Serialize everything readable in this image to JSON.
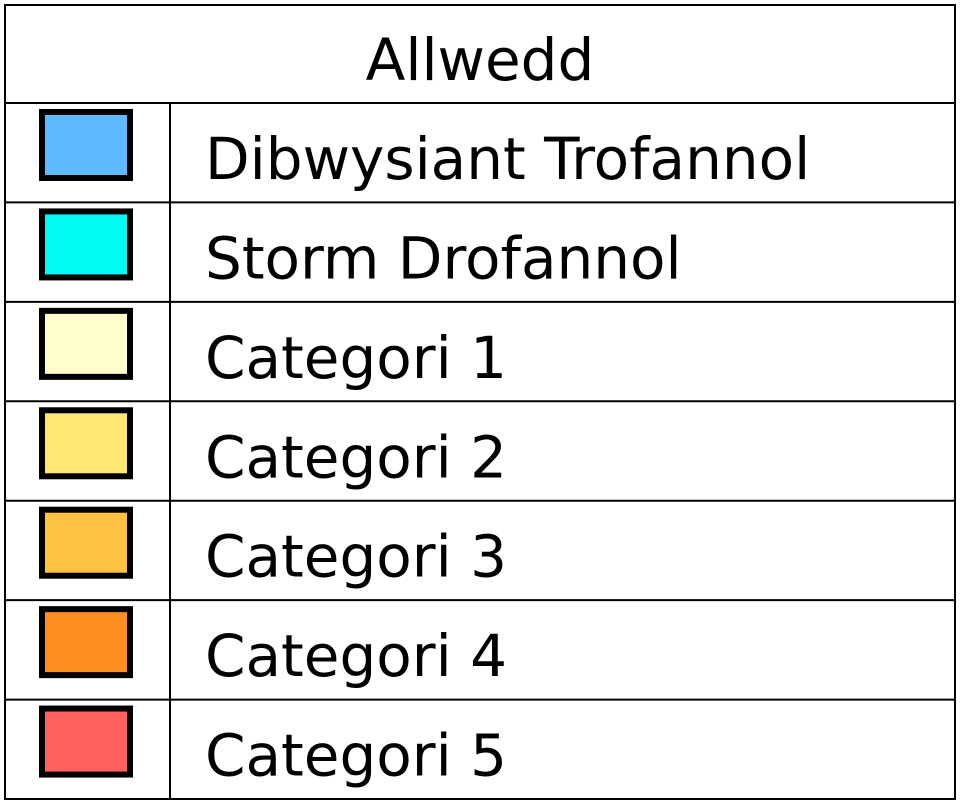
{
  "legend": {
    "title": "Allwedd",
    "items": [
      {
        "label": "Dibwysiant Trofannol",
        "color": "#5ebaff"
      },
      {
        "label": "Storm Drofannol",
        "color": "#00faf4"
      },
      {
        "label": "Categori 1",
        "color": "#ffffcc"
      },
      {
        "label": "Categori 2",
        "color": "#ffe775"
      },
      {
        "label": "Categori 3",
        "color": "#ffc140"
      },
      {
        "label": "Categori 4",
        "color": "#ff8f20"
      },
      {
        "label": "Categori 5",
        "color": "#ff6060"
      }
    ]
  }
}
